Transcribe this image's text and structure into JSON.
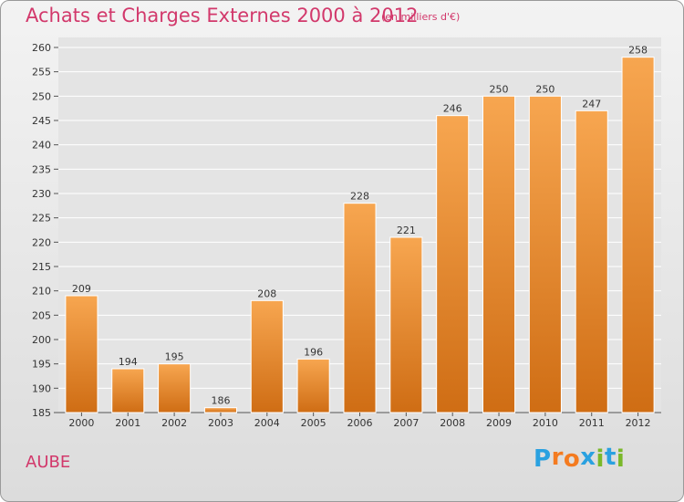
{
  "title": "Achats et Charges Externes 2000 à 2012",
  "subtitle": "(en milliers d'€)",
  "territory": "AUBE",
  "logo": {
    "text": "Proxiti",
    "letters": [
      "P",
      "r",
      "o",
      "x",
      "i",
      "t",
      "i"
    ],
    "colors": [
      "#2aa1e0",
      "#f47b20",
      "#f47b20",
      "#2aa1e0",
      "#7ab829",
      "#2aa1e0",
      "#7ab829"
    ]
  },
  "colors": {
    "bar": "#f39a3f",
    "bar_dark": "#cf6d14",
    "title": "#d2386b"
  },
  "chart_data": {
    "type": "bar",
    "categories": [
      "2000",
      "2001",
      "2002",
      "2003",
      "2004",
      "2005",
      "2006",
      "2007",
      "2008",
      "2009",
      "2010",
      "2011",
      "2012"
    ],
    "values": [
      209,
      194,
      195,
      186,
      208,
      196,
      228,
      221,
      246,
      250,
      250,
      247,
      258
    ],
    "ylim": [
      185,
      260
    ],
    "yticks": [
      185,
      190,
      195,
      200,
      205,
      210,
      215,
      220,
      225,
      230,
      235,
      240,
      245,
      250,
      255,
      260
    ],
    "grid": true,
    "xlabel": "",
    "ylabel": ""
  }
}
